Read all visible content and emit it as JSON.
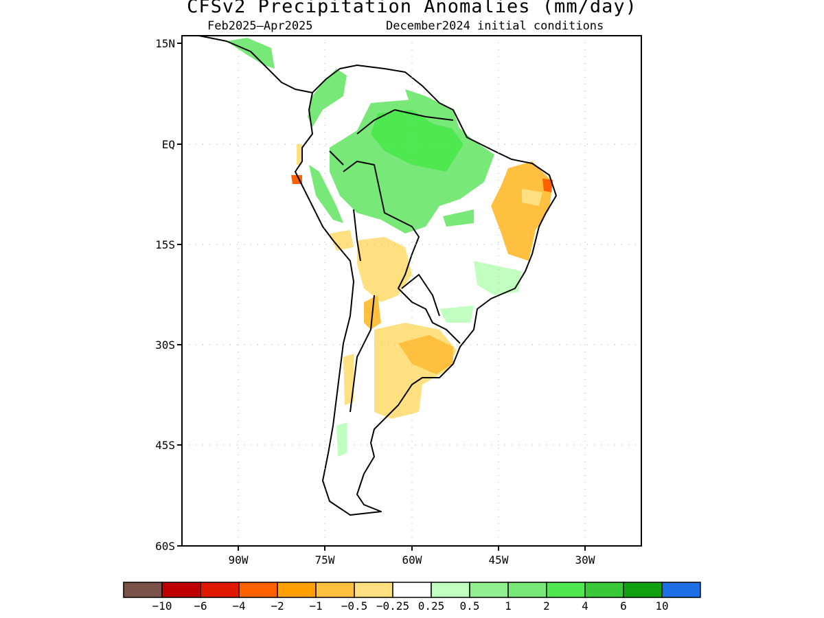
{
  "title": "CFSv2 Precipitation Anomalies (mm/day)",
  "subtitle_left": "Feb2025–Apr2025",
  "subtitle_right": "December2024 initial conditions",
  "lat_labels": [
    "15N",
    "EQ",
    "15S",
    "30S",
    "45S",
    "60S"
  ],
  "lon_labels": [
    "90W",
    "75W",
    "60W",
    "45W",
    "30W"
  ],
  "colorbar": {
    "colors": [
      "#7a5247",
      "#c00000",
      "#e01800",
      "#ff6000",
      "#ffa000",
      "#ffc040",
      "#ffe080",
      "#ffffff",
      "#c0ffc0",
      "#90f090",
      "#78e878",
      "#50e850",
      "#38c838",
      "#10a010",
      "#1e6ee6"
    ],
    "tick_labels": [
      "−10",
      "−6",
      "−4",
      "−2",
      "−1",
      "−0.5",
      "−0.25",
      "0.25",
      "0.5",
      "1",
      "2",
      "4",
      "6",
      "10"
    ]
  },
  "legend_colors": {
    "wet": "#78e878",
    "wetter": "#50e850",
    "light_wet": "#c0ffc0",
    "dry": "#ffc040",
    "light_dry": "#ffe080",
    "very_dry": "#ff6000"
  }
}
